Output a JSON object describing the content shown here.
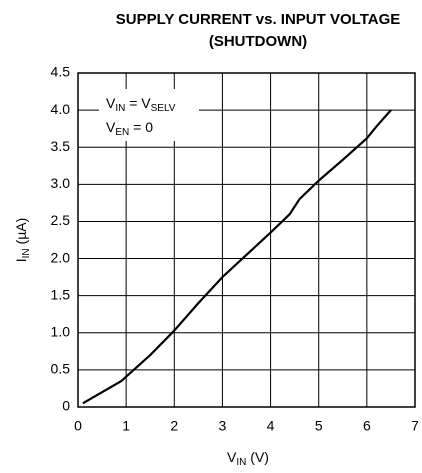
{
  "chart_data": {
    "type": "line",
    "title_lines": [
      "SUPPLY CURRENT vs. INPUT VOLTAGE",
      "(SHUTDOWN)"
    ],
    "x_label": [
      "V",
      "IN",
      " (V)"
    ],
    "y_label": [
      "I",
      "IN",
      " (µA)"
    ],
    "annotations": [
      [
        "V",
        "IN",
        " = V",
        "SELV"
      ],
      [
        "V",
        "EN",
        " = 0"
      ]
    ],
    "x": [
      0.1,
      0.5,
      0.9,
      1.5,
      2.0,
      2.5,
      3.0,
      3.5,
      4.0,
      4.4,
      4.6,
      5.0,
      5.5,
      6.0,
      6.2,
      6.5
    ],
    "series": [
      {
        "color": "#000000",
        "values": [
          0.05,
          0.2,
          0.35,
          0.7,
          1.03,
          1.4,
          1.75,
          2.05,
          2.35,
          2.6,
          2.8,
          3.05,
          3.33,
          3.62,
          3.78,
          4.0
        ]
      }
    ],
    "xlim": [
      0,
      7
    ],
    "xticks": [
      0,
      1,
      2,
      3,
      4,
      5,
      6,
      7
    ],
    "ylim": [
      0,
      4.5
    ],
    "yticks": [
      0,
      0.5,
      {
        "value": 1,
        "label": "1.0"
      },
      1.5,
      {
        "value": 2,
        "label": "2.0"
      },
      2.5,
      {
        "value": 3,
        "label": "3.0"
      },
      3.5,
      {
        "value": 4,
        "label": "4.0"
      },
      4.5
    ],
    "grid": true
  }
}
